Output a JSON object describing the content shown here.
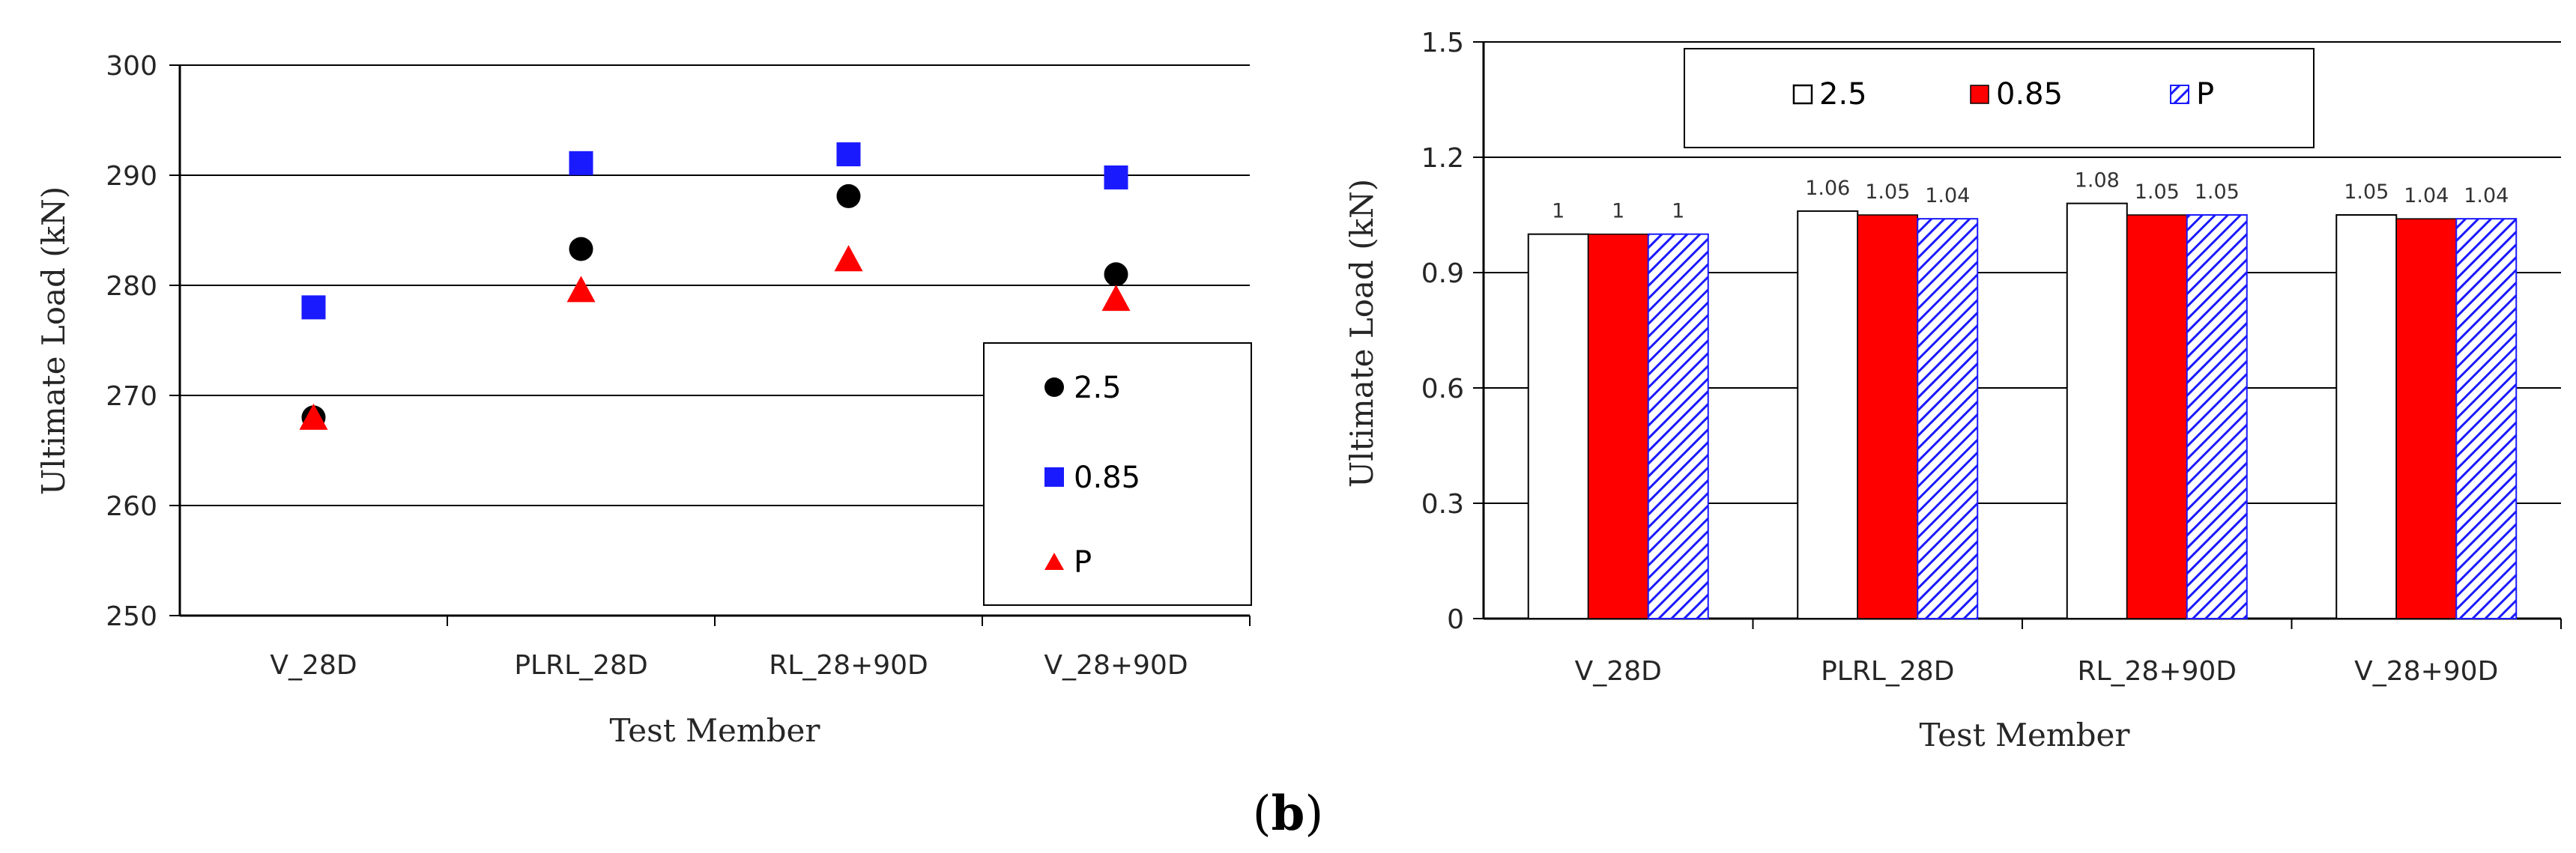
{
  "caption": {
    "open": "(",
    "letter": "b",
    "close": ")"
  },
  "colors": {
    "s25": "#000000",
    "s085": "#ff0000",
    "sP": "#1a1aff",
    "s085_marker": "#1a1aff",
    "sP_marker": "#ff0000",
    "grid": "#000000"
  },
  "chart_data": [
    {
      "type": "scatter",
      "title": "",
      "xlabel": "Test Member",
      "ylabel": "Ultimate Load  (kN)",
      "ylim": [
        250,
        300
      ],
      "yticks": [
        250,
        260,
        270,
        280,
        290,
        300
      ],
      "categories": [
        "V_28D",
        "PLRL_28D",
        "RL_28+90D",
        "V_28+90D"
      ],
      "series": [
        {
          "name": "2.5",
          "marker": "circle",
          "values": [
            268.0,
            283.3,
            288.1,
            281.0
          ]
        },
        {
          "name": "0.85",
          "marker": "square",
          "values": [
            278.0,
            291.1,
            291.9,
            289.8
          ]
        },
        {
          "name": "P",
          "marker": "triangle",
          "values": [
            267.9,
            279.5,
            282.3,
            278.7
          ]
        }
      ],
      "legend": "right"
    },
    {
      "type": "bar",
      "title": "",
      "xlabel": "Test Member",
      "ylabel": "Ultimate Load  (kN)",
      "ylim": [
        0,
        1.5
      ],
      "yticks": [
        "0",
        "0.3",
        "0.6",
        "0.9",
        "1.2",
        "1.5"
      ],
      "categories": [
        "V_28D",
        "PLRL_28D",
        "RL_28+90D",
        "V_28+90D"
      ],
      "series": [
        {
          "name": "2.5",
          "fill": "white",
          "values": [
            1,
            1.06,
            1.08,
            1.05
          ],
          "labels": [
            "1",
            "1.06",
            "1.08",
            "1.05"
          ]
        },
        {
          "name": "0.85",
          "fill": "red",
          "values": [
            1,
            1.05,
            1.05,
            1.04
          ],
          "labels": [
            "1",
            "1.05",
            "1.05",
            "1.04"
          ]
        },
        {
          "name": "P",
          "fill": "blue-hatch",
          "values": [
            1,
            1.04,
            1.05,
            1.04
          ],
          "labels": [
            "1",
            "1.04",
            "1.05",
            "1.04"
          ]
        }
      ],
      "legend": "top"
    }
  ]
}
